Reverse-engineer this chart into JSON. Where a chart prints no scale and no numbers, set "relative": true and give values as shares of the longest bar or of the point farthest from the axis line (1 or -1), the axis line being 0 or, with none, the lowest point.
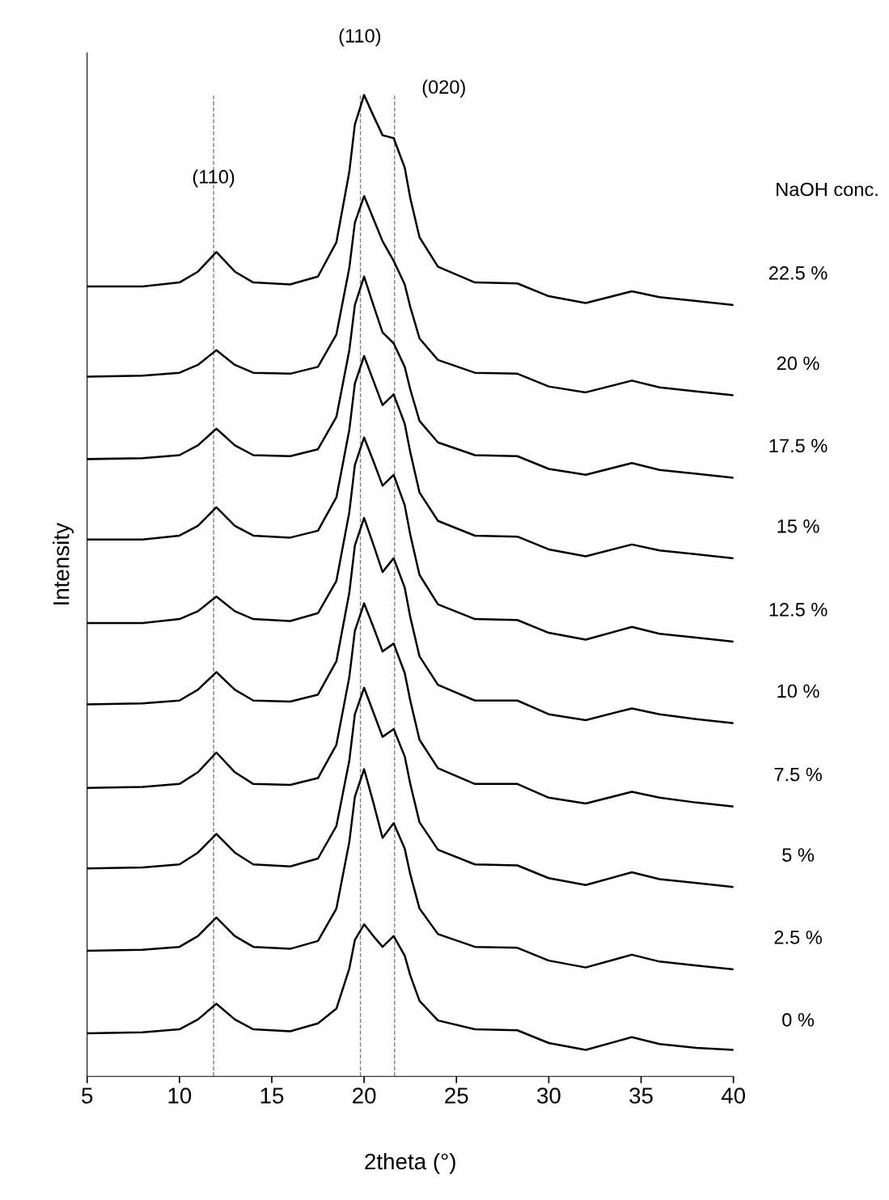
{
  "chart_data": {
    "type": "line",
    "relative": true,
    "xlabel": "2theta (°)",
    "ylabel": "Intensity",
    "x": [
      5,
      8,
      10,
      11,
      12,
      13,
      14,
      16,
      17.5,
      18.5,
      19.2,
      19.5,
      20,
      20.5,
      21,
      21.6,
      22.2,
      22.5,
      23,
      24,
      26,
      28.3,
      30,
      32,
      34.5,
      36,
      38,
      40
    ],
    "xlim": [
      5,
      40
    ],
    "xticks": [
      5,
      10,
      15,
      20,
      25,
      30,
      35,
      40
    ],
    "grid": false,
    "legend": false,
    "marker": "none",
    "line_style": "solid",
    "series": [
      {
        "name": "22.5 %",
        "color": "#000000",
        "values": [
          0.805,
          0.805,
          0.809,
          0.82,
          0.84,
          0.82,
          0.809,
          0.807,
          0.815,
          0.85,
          0.922,
          0.97,
          1.0,
          0.979,
          0.959,
          0.956,
          0.926,
          0.895,
          0.855,
          0.825,
          0.809,
          0.808,
          0.795,
          0.788,
          0.8,
          0.794,
          0.79,
          0.786
        ]
      },
      {
        "name": "20 %",
        "color": "#000000",
        "values": [
          0.713,
          0.714,
          0.717,
          0.725,
          0.74,
          0.725,
          0.717,
          0.716,
          0.723,
          0.756,
          0.824,
          0.87,
          0.897,
          0.874,
          0.851,
          0.831,
          0.807,
          0.784,
          0.752,
          0.73,
          0.717,
          0.716,
          0.703,
          0.697,
          0.709,
          0.702,
          0.698,
          0.694
        ]
      },
      {
        "name": "17.5 %",
        "color": "#000000",
        "values": [
          0.629,
          0.63,
          0.633,
          0.643,
          0.66,
          0.643,
          0.633,
          0.632,
          0.639,
          0.672,
          0.74,
          0.786,
          0.815,
          0.786,
          0.758,
          0.747,
          0.723,
          0.7,
          0.668,
          0.646,
          0.633,
          0.632,
          0.619,
          0.613,
          0.625,
          0.618,
          0.614,
          0.61
        ]
      },
      {
        "name": "15 %",
        "color": "#000000",
        "values": [
          0.547,
          0.547,
          0.551,
          0.561,
          0.58,
          0.561,
          0.551,
          0.549,
          0.556,
          0.59,
          0.659,
          0.706,
          0.734,
          0.709,
          0.684,
          0.695,
          0.665,
          0.636,
          0.595,
          0.566,
          0.551,
          0.55,
          0.537,
          0.53,
          0.542,
          0.536,
          0.532,
          0.528
        ]
      },
      {
        "name": "12.5 %",
        "color": "#000000",
        "values": [
          0.462,
          0.462,
          0.466,
          0.474,
          0.489,
          0.474,
          0.466,
          0.464,
          0.472,
          0.505,
          0.575,
          0.623,
          0.651,
          0.627,
          0.602,
          0.613,
          0.582,
          0.552,
          0.511,
          0.481,
          0.466,
          0.465,
          0.452,
          0.445,
          0.458,
          0.451,
          0.447,
          0.443
        ]
      },
      {
        "name": "10 %",
        "color": "#000000",
        "values": [
          0.379,
          0.38,
          0.383,
          0.394,
          0.412,
          0.394,
          0.383,
          0.382,
          0.389,
          0.423,
          0.493,
          0.541,
          0.569,
          0.542,
          0.514,
          0.528,
          0.498,
          0.468,
          0.428,
          0.399,
          0.383,
          0.383,
          0.369,
          0.363,
          0.375,
          0.369,
          0.364,
          0.36
        ]
      },
      {
        "name": "7.5 %",
        "color": "#000000",
        "values": [
          0.294,
          0.295,
          0.298,
          0.31,
          0.33,
          0.31,
          0.298,
          0.297,
          0.304,
          0.338,
          0.407,
          0.454,
          0.482,
          0.458,
          0.433,
          0.441,
          0.411,
          0.383,
          0.343,
          0.314,
          0.298,
          0.298,
          0.284,
          0.278,
          0.29,
          0.284,
          0.279,
          0.275
        ]
      },
      {
        "name": "5 %",
        "color": "#000000",
        "values": [
          0.212,
          0.213,
          0.216,
          0.228,
          0.247,
          0.228,
          0.216,
          0.214,
          0.222,
          0.255,
          0.322,
          0.369,
          0.396,
          0.371,
          0.346,
          0.354,
          0.326,
          0.298,
          0.259,
          0.231,
          0.216,
          0.215,
          0.202,
          0.195,
          0.208,
          0.201,
          0.197,
          0.193
        ]
      },
      {
        "name": "2.5 %",
        "color": "#000000",
        "values": [
          0.128,
          0.129,
          0.132,
          0.143,
          0.162,
          0.143,
          0.132,
          0.13,
          0.138,
          0.171,
          0.239,
          0.285,
          0.313,
          0.279,
          0.243,
          0.258,
          0.232,
          0.206,
          0.171,
          0.145,
          0.132,
          0.131,
          0.118,
          0.111,
          0.124,
          0.117,
          0.113,
          0.109
        ]
      },
      {
        "name": "0 %",
        "color": "#000000",
        "values": [
          0.044,
          0.045,
          0.048,
          0.058,
          0.074,
          0.058,
          0.048,
          0.046,
          0.054,
          0.069,
          0.11,
          0.139,
          0.155,
          0.143,
          0.132,
          0.143,
          0.123,
          0.103,
          0.077,
          0.057,
          0.048,
          0.047,
          0.034,
          0.027,
          0.04,
          0.033,
          0.029,
          0.027
        ]
      }
    ],
    "ref_lines": [
      {
        "axis": "x",
        "value": 11.85,
        "color": "#808080",
        "line_style": "dashed"
      },
      {
        "axis": "x",
        "value": 19.8,
        "color": "#808080",
        "line_style": "dashed"
      },
      {
        "axis": "x",
        "value": 21.65,
        "color": "#808080",
        "line_style": "dashed"
      }
    ],
    "annotations": [
      {
        "text": "(110)",
        "x": 11.85,
        "y": 0.915
      },
      "(110)",
      "(020)",
      "NaOH conc."
    ]
  }
}
